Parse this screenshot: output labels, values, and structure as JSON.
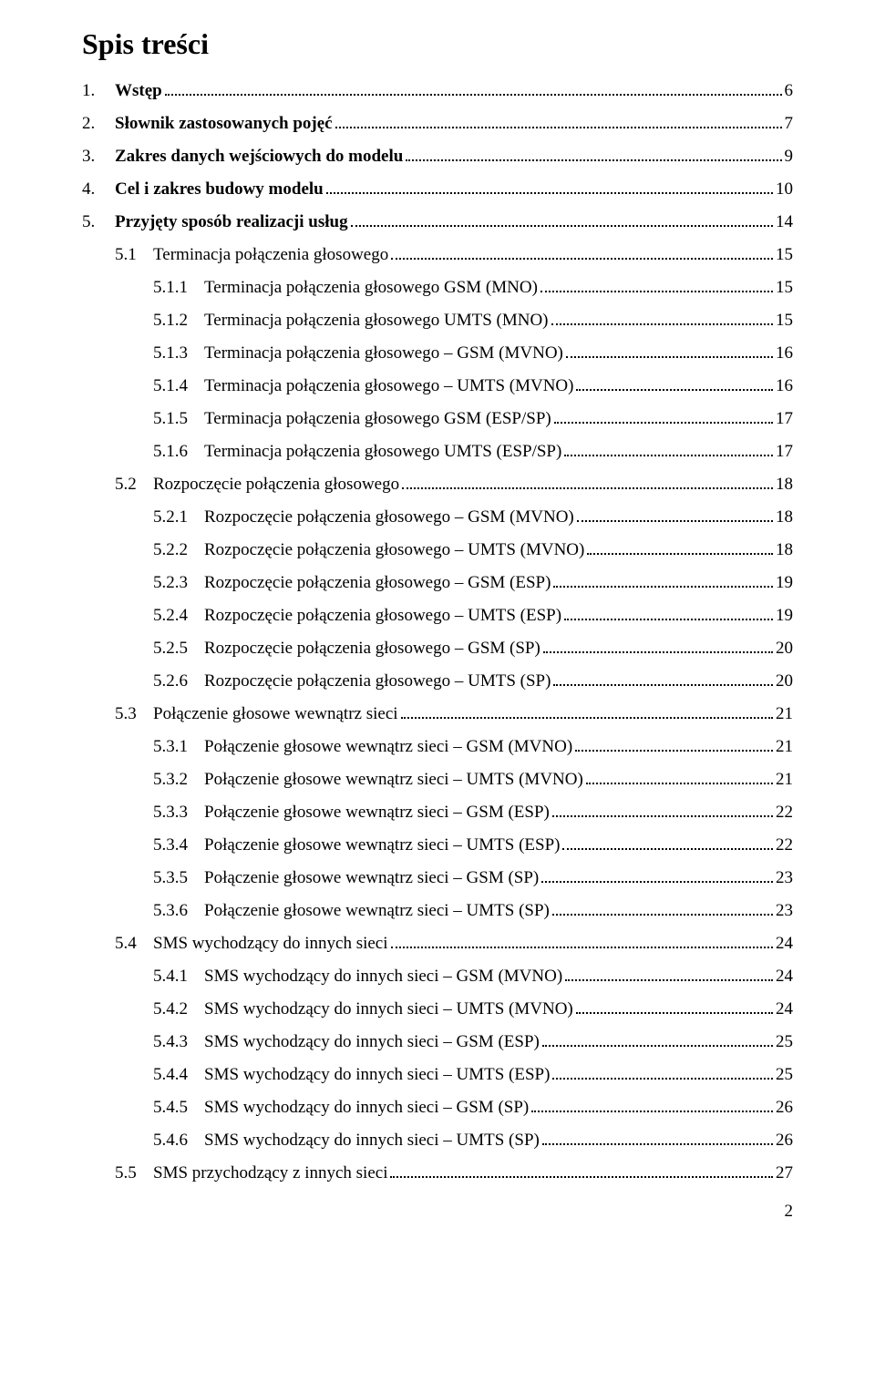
{
  "title": "Spis treści",
  "page_number": "2",
  "text_color": "#000000",
  "background_color": "#ffffff",
  "font_family": "Times New Roman",
  "base_font_size_pt": 14,
  "title_font_size_pt": 24,
  "entries": [
    {
      "level": 1,
      "bold": true,
      "num": "1.",
      "label": "Wstęp",
      "page": "6"
    },
    {
      "level": 1,
      "bold": true,
      "num": "2.",
      "label": "Słownik zastosowanych pojęć",
      "page": "7"
    },
    {
      "level": 1,
      "bold": true,
      "num": "3.",
      "label": "Zakres danych wejściowych do modelu",
      "page": "9"
    },
    {
      "level": 1,
      "bold": true,
      "num": "4.",
      "label": "Cel i zakres budowy modelu",
      "page": "10"
    },
    {
      "level": 1,
      "bold": true,
      "num": "5.",
      "label": "Przyjęty sposób realizacji usług",
      "page": "14"
    },
    {
      "level": 2,
      "bold": false,
      "num": "5.1",
      "label": "Terminacja połączenia głosowego",
      "page": "15"
    },
    {
      "level": 3,
      "bold": false,
      "num": "5.1.1",
      "label": "Terminacja połączenia głosowego GSM (MNO)",
      "page": "15"
    },
    {
      "level": 3,
      "bold": false,
      "num": "5.1.2",
      "label": "Terminacja połączenia głosowego UMTS (MNO)",
      "page": "15"
    },
    {
      "level": 3,
      "bold": false,
      "num": "5.1.3",
      "label": "Terminacja połączenia głosowego – GSM (MVNO)",
      "page": "16"
    },
    {
      "level": 3,
      "bold": false,
      "num": "5.1.4",
      "label": "Terminacja połączenia głosowego – UMTS (MVNO)",
      "page": "16"
    },
    {
      "level": 3,
      "bold": false,
      "num": "5.1.5",
      "label": "Terminacja połączenia głosowego GSM (ESP/SP)",
      "page": "17"
    },
    {
      "level": 3,
      "bold": false,
      "num": "5.1.6",
      "label": "Terminacja połączenia głosowego UMTS (ESP/SP)",
      "page": "17"
    },
    {
      "level": 2,
      "bold": false,
      "num": "5.2",
      "label": "Rozpoczęcie połączenia głosowego",
      "page": "18"
    },
    {
      "level": 3,
      "bold": false,
      "num": "5.2.1",
      "label": "Rozpoczęcie połączenia głosowego – GSM (MVNO)",
      "page": "18"
    },
    {
      "level": 3,
      "bold": false,
      "num": "5.2.2",
      "label": "Rozpoczęcie połączenia głosowego – UMTS (MVNO)",
      "page": "18"
    },
    {
      "level": 3,
      "bold": false,
      "num": "5.2.3",
      "label": "Rozpoczęcie połączenia głosowego – GSM (ESP)",
      "page": "19"
    },
    {
      "level": 3,
      "bold": false,
      "num": "5.2.4",
      "label": "Rozpoczęcie połączenia głosowego – UMTS (ESP)",
      "page": "19"
    },
    {
      "level": 3,
      "bold": false,
      "num": "5.2.5",
      "label": "Rozpoczęcie połączenia głosowego – GSM (SP)",
      "page": "20"
    },
    {
      "level": 3,
      "bold": false,
      "num": "5.2.6",
      "label": "Rozpoczęcie połączenia głosowego – UMTS (SP)",
      "page": "20"
    },
    {
      "level": 2,
      "bold": false,
      "num": "5.3",
      "label": "Połączenie głosowe wewnątrz sieci",
      "page": "21"
    },
    {
      "level": 3,
      "bold": false,
      "num": "5.3.1",
      "label": "Połączenie głosowe wewnątrz sieci – GSM (MVNO)",
      "page": "21"
    },
    {
      "level": 3,
      "bold": false,
      "num": "5.3.2",
      "label": "Połączenie głosowe wewnątrz sieci – UMTS (MVNO)",
      "page": "21"
    },
    {
      "level": 3,
      "bold": false,
      "num": "5.3.3",
      "label": "Połączenie głosowe wewnątrz sieci – GSM (ESP)",
      "page": "22"
    },
    {
      "level": 3,
      "bold": false,
      "num": "5.3.4",
      "label": "Połączenie głosowe wewnątrz sieci – UMTS (ESP)",
      "page": "22"
    },
    {
      "level": 3,
      "bold": false,
      "num": "5.3.5",
      "label": "Połączenie głosowe wewnątrz sieci – GSM (SP)",
      "page": "23"
    },
    {
      "level": 3,
      "bold": false,
      "num": "5.3.6",
      "label": "Połączenie głosowe wewnątrz sieci – UMTS (SP)",
      "page": "23"
    },
    {
      "level": 2,
      "bold": false,
      "num": "5.4",
      "label": "SMS wychodzący do innych sieci",
      "page": "24"
    },
    {
      "level": 3,
      "bold": false,
      "num": "5.4.1",
      "label": "SMS wychodzący do innych sieci – GSM (MVNO)",
      "page": "24"
    },
    {
      "level": 3,
      "bold": false,
      "num": "5.4.2",
      "label": "SMS wychodzący do innych sieci – UMTS (MVNO)",
      "page": "24"
    },
    {
      "level": 3,
      "bold": false,
      "num": "5.4.3",
      "label": "SMS wychodzący do innych sieci – GSM (ESP)",
      "page": "25"
    },
    {
      "level": 3,
      "bold": false,
      "num": "5.4.4",
      "label": "SMS wychodzący do innych sieci – UMTS (ESP)",
      "page": "25"
    },
    {
      "level": 3,
      "bold": false,
      "num": "5.4.5",
      "label": "SMS wychodzący do innych sieci – GSM (SP)",
      "page": "26"
    },
    {
      "level": 3,
      "bold": false,
      "num": "5.4.6",
      "label": "SMS wychodzący do innych sieci – UMTS (SP)",
      "page": "26"
    },
    {
      "level": 2,
      "bold": false,
      "num": "5.5",
      "label": "SMS przychodzący z innych sieci",
      "page": "27"
    }
  ]
}
